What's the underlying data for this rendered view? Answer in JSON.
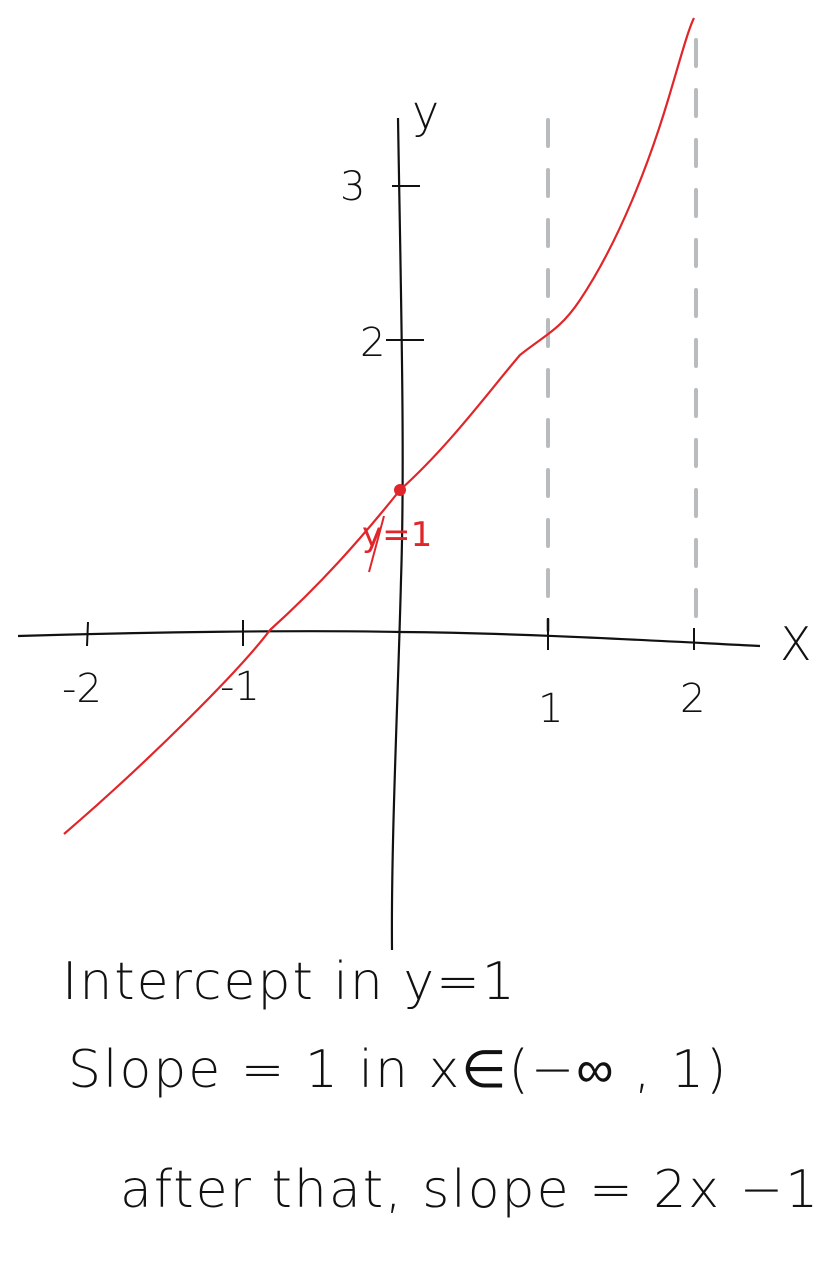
{
  "chart_data": {
    "type": "line",
    "x_axis_label": "X",
    "y_axis_label": "y",
    "x_ticks": [
      "-2",
      "-1",
      "1",
      "2"
    ],
    "y_ticks": [
      "2",
      "3"
    ],
    "intercept_label": "y=1",
    "intercept_point": {
      "x": 0,
      "y": 1
    },
    "dashed_verticals_at_x": [
      1,
      2
    ],
    "colors": {
      "curve": "#e0262a",
      "axes": "#111111",
      "dashed": "#b8bcbf"
    }
  },
  "notes": {
    "line1": "Intercept in  y=1",
    "line2": "Slope  =   1 in x∈(−∞ , 1)",
    "line3": "after that, slope = 2x −1"
  }
}
